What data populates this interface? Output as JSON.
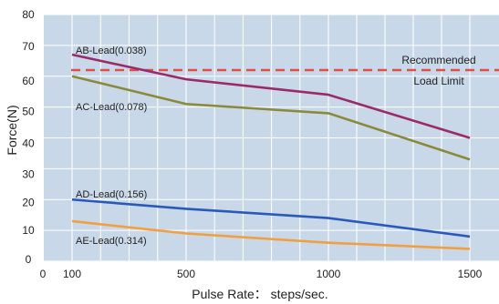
{
  "chart_data": {
    "type": "line",
    "xlabel": "Pulse Rate： steps/sec.",
    "ylabel": "Force(N)",
    "xlim": [
      0,
      1500
    ],
    "ylim": [
      0,
      80
    ],
    "x_ticks": [
      "0",
      "100",
      "500",
      "1000",
      "1500"
    ],
    "x_tick_values": [
      0,
      100,
      500,
      1000,
      1500
    ],
    "y_ticks": [
      "0",
      "10",
      "20",
      "30",
      "40",
      "50",
      "60",
      "70",
      "80"
    ],
    "grid": true,
    "plot_background": "#c8d8e8",
    "series": [
      {
        "name": "AB-Lead(0.038)",
        "color": "#9b2a6a",
        "x": [
          100,
          500,
          1000,
          1500
        ],
        "y": [
          67,
          59,
          54,
          40
        ]
      },
      {
        "name": "AC-Lead(0.078)",
        "color": "#8a8a3a",
        "x": [
          100,
          500,
          1000,
          1500
        ],
        "y": [
          60,
          51,
          48,
          33
        ]
      },
      {
        "name": "AD-Lead(0.156)",
        "color": "#2a5ab8",
        "x": [
          100,
          500,
          1000,
          1500
        ],
        "y": [
          20,
          17,
          14,
          8
        ]
      },
      {
        "name": "AE-Lead(0.314)",
        "color": "#f0a040",
        "x": [
          100,
          500,
          1000,
          1500
        ],
        "y": [
          13,
          9,
          6,
          4
        ]
      }
    ],
    "reference_line": {
      "y": 62,
      "color": "#e0504a",
      "style": "dashed",
      "label_lines": [
        "Recommended",
        "Load Limit"
      ]
    }
  }
}
